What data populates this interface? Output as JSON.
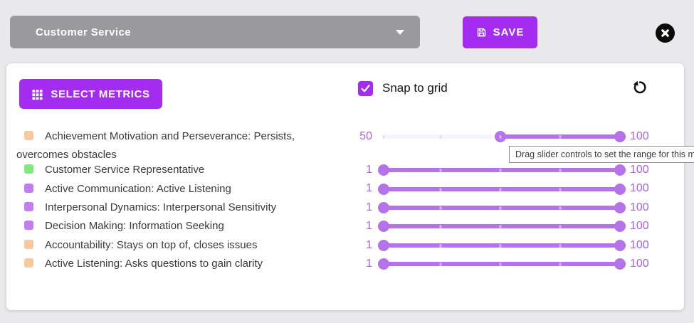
{
  "colors": {
    "accent": "#a32cf0",
    "slider": "#b473e9",
    "header_gray": "#9a9a9c",
    "value_text": "#a763e8"
  },
  "header": {
    "template_select": {
      "value": "Customer Service",
      "icon": "chevron-down"
    },
    "save_button": {
      "label": "SAVE",
      "icon": "floppy-disk"
    },
    "close_button": {
      "icon": "circle-x"
    }
  },
  "toolbar": {
    "select_metrics_button": {
      "label": "SELECT METRICS",
      "icon": "grid"
    },
    "snap_to_grid": {
      "label": "Snap to grid",
      "checked": true,
      "icon": "checkmark"
    },
    "reset_button": {
      "icon": "rotate-left"
    }
  },
  "tooltip": {
    "text": "Drag slider controls to set the range for this m"
  },
  "metrics": [
    {
      "swatch": "#f8c9a0",
      "label": "Achievement Motivation and Perseverance: Persists, overcomes obstacles",
      "slider": {
        "min": 1,
        "max": 100,
        "low": 50,
        "high": 100,
        "ticks": [
          1,
          25,
          50,
          75
        ]
      }
    },
    {
      "swatch": "#7de97f",
      "label": "Customer Service Representative",
      "slider": {
        "min": 1,
        "max": 100,
        "low": 1,
        "high": 100,
        "ticks": [
          25,
          50,
          75
        ]
      }
    },
    {
      "swatch": "#c07ef2",
      "label": "Active Communication: Active Listening",
      "slider": {
        "min": 1,
        "max": 100,
        "low": 1,
        "high": 100,
        "ticks": [
          25,
          50,
          75
        ]
      }
    },
    {
      "swatch": "#c07ef2",
      "label": "Interpersonal Dynamics: Interpersonal Sensitivity",
      "slider": {
        "min": 1,
        "max": 100,
        "low": 1,
        "high": 100,
        "ticks": [
          25,
          50,
          75
        ]
      }
    },
    {
      "swatch": "#c07ef2",
      "label": "Decision Making: Information Seeking",
      "slider": {
        "min": 1,
        "max": 100,
        "low": 1,
        "high": 100,
        "ticks": [
          25,
          50,
          75
        ]
      }
    },
    {
      "swatch": "#f8c9a0",
      "label": "Accountability: Stays on top of, closes issues",
      "slider": {
        "min": 1,
        "max": 100,
        "low": 1,
        "high": 100,
        "ticks": [
          25,
          50,
          75
        ]
      }
    },
    {
      "swatch": "#f8c9a0",
      "label": "Active Listening: Asks questions to gain clarity",
      "slider": {
        "min": 1,
        "max": 100,
        "low": 1,
        "high": 100,
        "ticks": [
          25,
          50,
          75
        ]
      }
    }
  ]
}
